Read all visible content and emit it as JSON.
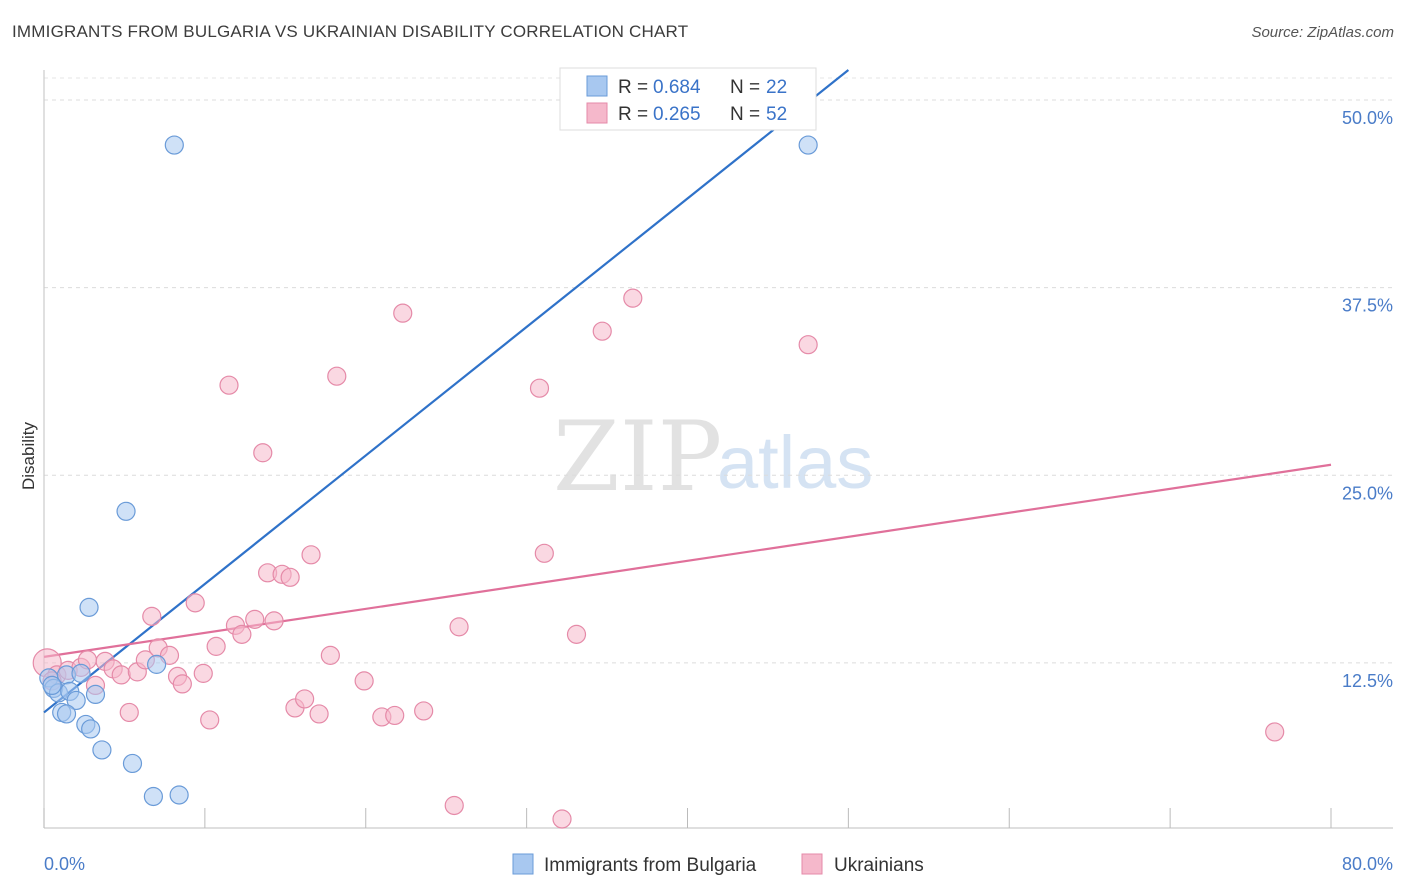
{
  "header": {
    "title": "IMMIGRANTS FROM BULGARIA VS UKRAINIAN DISABILITY CORRELATION CHART",
    "source": "Source: ZipAtlas.com"
  },
  "watermark": {
    "part1": "ZIP",
    "part2": "atlas"
  },
  "legend_top": {
    "rows": [
      {
        "r_label": "R = ",
        "r_value": "0.684",
        "n_label": "N = ",
        "n_value": "22"
      },
      {
        "r_label": "R = ",
        "r_value": "0.265",
        "n_label": "N = ",
        "n_value": "52"
      }
    ]
  },
  "colors": {
    "blue_fill": "#a8c8f0",
    "blue_stroke": "#6a9bd8",
    "blue_line": "#2f72c9",
    "pink_fill": "#f5b8cb",
    "pink_stroke": "#e58aa8",
    "pink_line": "#e0709a",
    "tick_text": "#4a7cc8"
  },
  "chart_data": {
    "type": "scatter",
    "title": "IMMIGRANTS FROM BULGARIA VS UKRAINIAN DISABILITY CORRELATION CHART",
    "xlabel": "",
    "ylabel": "Disability",
    "xlim": [
      0,
      80
    ],
    "ylim": [
      1.5,
      52
    ],
    "x_tick_labels": [
      "0.0%",
      "80.0%"
    ],
    "y_ticks": [
      12.5,
      25.0,
      37.5,
      50.0
    ],
    "y_tick_labels": [
      "12.5%",
      "25.0%",
      "37.5%",
      "50.0%"
    ],
    "grid": "horizontal dashed",
    "legend_placement": "bottom",
    "series": [
      {
        "name": "Immigrants from Bulgaria",
        "color": "blue",
        "trend": {
          "x": [
            0,
            50
          ],
          "y": [
            9.2,
            52
          ]
        },
        "points": [
          [
            8.1,
            47.0
          ],
          [
            47.5,
            47.0
          ],
          [
            5.1,
            22.6
          ],
          [
            2.8,
            16.2
          ],
          [
            7.0,
            12.4
          ],
          [
            0.3,
            11.5
          ],
          [
            1.4,
            11.7
          ],
          [
            2.3,
            11.8
          ],
          [
            0.6,
            10.8
          ],
          [
            0.9,
            10.5
          ],
          [
            1.6,
            10.6
          ],
          [
            2.0,
            10.0
          ],
          [
            3.2,
            10.4
          ],
          [
            1.1,
            9.2
          ],
          [
            1.4,
            9.1
          ],
          [
            2.6,
            8.4
          ],
          [
            2.9,
            8.1
          ],
          [
            3.6,
            6.7
          ],
          [
            5.5,
            5.8
          ],
          [
            6.8,
            3.6
          ],
          [
            8.4,
            3.7
          ],
          [
            0.5,
            11.0
          ]
        ]
      },
      {
        "name": "Ukrainians",
        "color": "pink",
        "trend": {
          "x": [
            0,
            80
          ],
          "y": [
            12.9,
            25.7
          ]
        },
        "points": [
          [
            0.2,
            12.5
          ],
          [
            0.8,
            11.7
          ],
          [
            1.5,
            12.0
          ],
          [
            2.3,
            12.2
          ],
          [
            2.7,
            12.7
          ],
          [
            3.2,
            11.0
          ],
          [
            3.8,
            12.6
          ],
          [
            4.3,
            12.1
          ],
          [
            4.8,
            11.7
          ],
          [
            5.3,
            9.2
          ],
          [
            5.8,
            11.9
          ],
          [
            6.3,
            12.7
          ],
          [
            6.7,
            15.6
          ],
          [
            7.1,
            13.5
          ],
          [
            7.8,
            13.0
          ],
          [
            8.3,
            11.6
          ],
          [
            8.6,
            11.1
          ],
          [
            9.4,
            16.5
          ],
          [
            9.9,
            11.8
          ],
          [
            10.3,
            8.7
          ],
          [
            10.7,
            13.6
          ],
          [
            11.5,
            31.0
          ],
          [
            11.9,
            15.0
          ],
          [
            12.3,
            14.4
          ],
          [
            13.1,
            15.4
          ],
          [
            13.6,
            26.5
          ],
          [
            13.9,
            18.5
          ],
          [
            14.3,
            15.3
          ],
          [
            14.8,
            18.4
          ],
          [
            15.3,
            18.2
          ],
          [
            15.6,
            9.5
          ],
          [
            16.2,
            10.1
          ],
          [
            16.6,
            19.7
          ],
          [
            17.1,
            9.1
          ],
          [
            17.8,
            13.0
          ],
          [
            18.2,
            31.6
          ],
          [
            19.9,
            11.3
          ],
          [
            21.0,
            8.9
          ],
          [
            21.8,
            9.0
          ],
          [
            22.3,
            35.8
          ],
          [
            23.6,
            9.3
          ],
          [
            25.5,
            3.0
          ],
          [
            25.8,
            14.9
          ],
          [
            30.8,
            30.8
          ],
          [
            31.1,
            19.8
          ],
          [
            32.2,
            2.1
          ],
          [
            33.1,
            14.4
          ],
          [
            34.7,
            34.6
          ],
          [
            36.6,
            36.8
          ],
          [
            47.5,
            33.7
          ],
          [
            76.5,
            7.9
          ],
          [
            0.5,
            11.3
          ]
        ]
      }
    ]
  }
}
